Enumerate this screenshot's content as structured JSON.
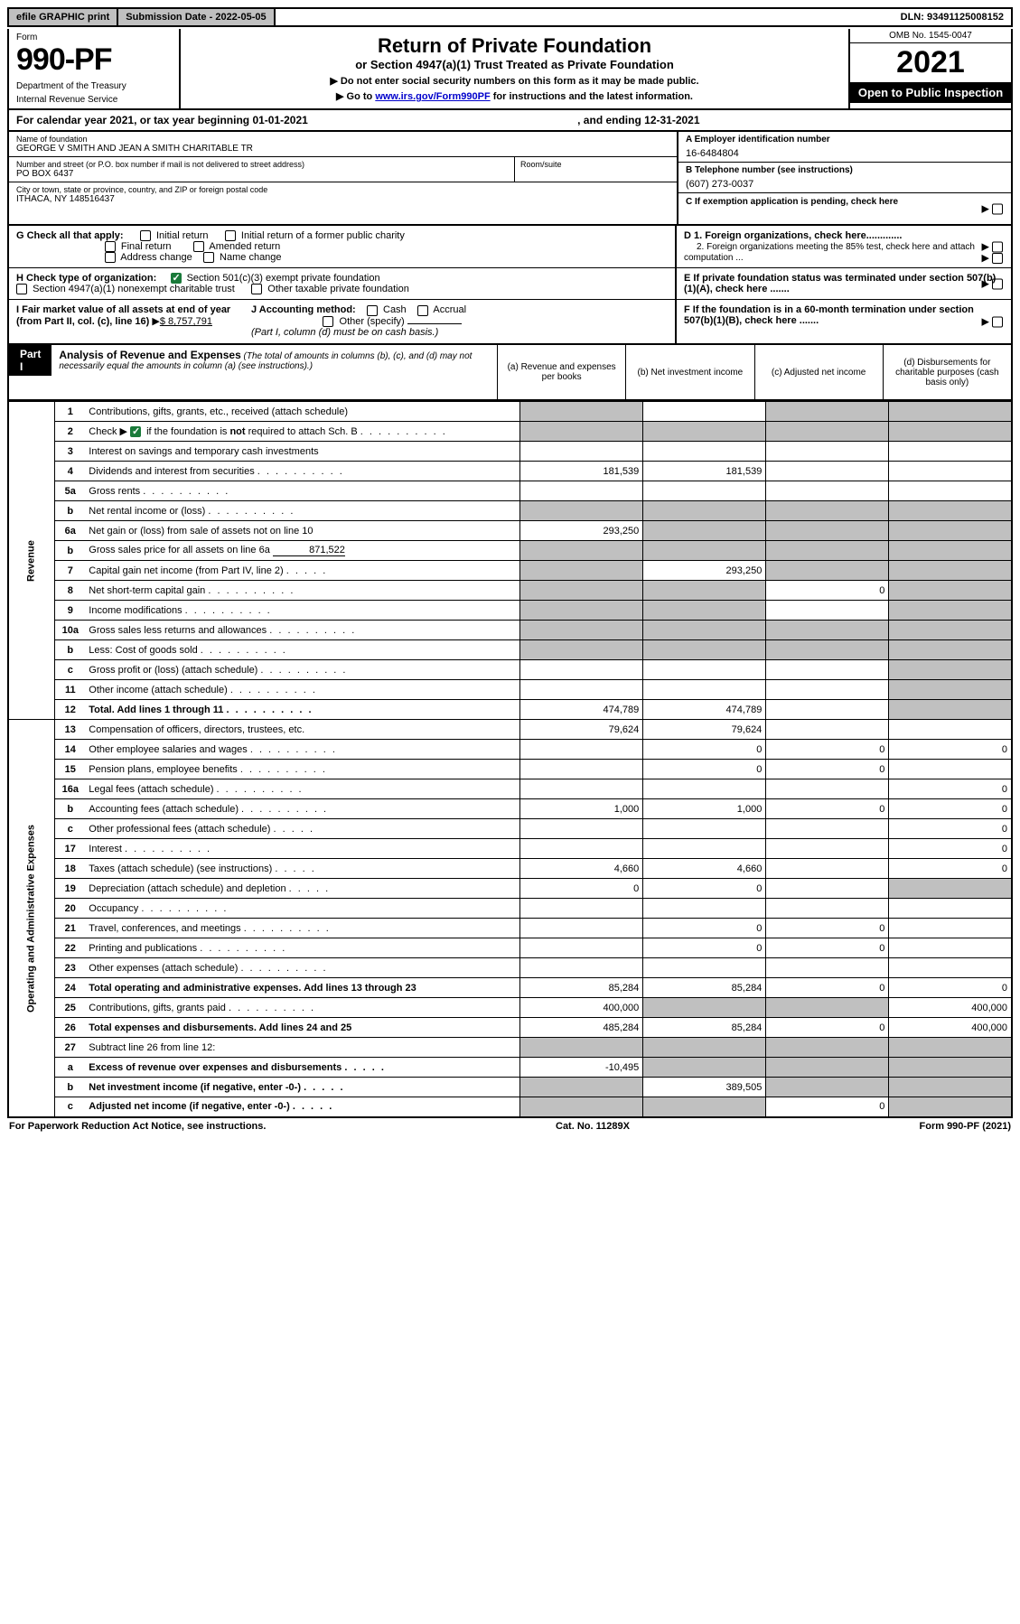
{
  "topbar": {
    "efile": "efile GRAPHIC print",
    "subdate_label": "Submission Date - ",
    "subdate_val": "2022-05-05",
    "dln_label": "DLN: ",
    "dln_val": "93491125008152"
  },
  "header": {
    "form_label": "Form",
    "form_no": "990-PF",
    "dept": "Department of the Treasury",
    "irs": "Internal Revenue Service",
    "title": "Return of Private Foundation",
    "subtitle": "or Section 4947(a)(1) Trust Treated as Private Foundation",
    "note1": "▶ Do not enter social security numbers on this form as it may be made public.",
    "note2a": "▶ Go to ",
    "note2link": "www.irs.gov/Form990PF",
    "note2b": " for instructions and the latest information.",
    "omb": "OMB No. 1545-0047",
    "year": "2021",
    "open": "Open to Public Inspection"
  },
  "cal": {
    "line": "For calendar year 2021, or tax year beginning 01-01-2021",
    "ending": ", and ending 12-31-2021"
  },
  "id": {
    "name_lbl": "Name of foundation",
    "name": "GEORGE V SMITH AND JEAN A SMITH CHARITABLE TR",
    "addr_lbl": "Number and street (or P.O. box number if mail is not delivered to street address)",
    "addr": "PO BOX 6437",
    "room_lbl": "Room/suite",
    "city_lbl": "City or town, state or province, country, and ZIP or foreign postal code",
    "city": "ITHACA, NY  148516437",
    "ein_lbl": "A Employer identification number",
    "ein": "16-6484804",
    "tel_lbl": "B Telephone number (see instructions)",
    "tel": "(607) 273-0037",
    "c_lbl": "C If exemption application is pending, check here"
  },
  "checks": {
    "g": "G Check all that apply:",
    "g1": "Initial return",
    "g2": "Initial return of a former public charity",
    "g3": "Final return",
    "g4": "Amended return",
    "g5": "Address change",
    "g6": "Name change",
    "h": "H Check type of organization:",
    "h1": "Section 501(c)(3) exempt private foundation",
    "h2": "Section 4947(a)(1) nonexempt charitable trust",
    "h3": "Other taxable private foundation",
    "i": "I Fair market value of all assets at end of year (from Part II, col. (c), line 16)",
    "i_val": "$  8,757,791",
    "j": "J Accounting method:",
    "j1": "Cash",
    "j2": "Accrual",
    "j3": "Other (specify)",
    "j_note": "(Part I, column (d) must be on cash basis.)",
    "d1": "D 1. Foreign organizations, check here.............",
    "d2": "2. Foreign organizations meeting the 85% test, check here and attach computation ...",
    "e": "E  If private foundation status was terminated under section 507(b)(1)(A), check here .......",
    "f": "F  If the foundation is in a 60-month termination under section 507(b)(1)(B), check here ......."
  },
  "part1": {
    "label": "Part I",
    "title": "Analysis of Revenue and Expenses",
    "subtitle": "(The total of amounts in columns (b), (c), and (d) may not necessarily equal the amounts in column (a) (see instructions).)",
    "col_a": "(a)     Revenue and expenses per books",
    "col_b": "(b)     Net investment income",
    "col_c": "(c)    Adjusted net income",
    "col_d": "(d)   Disbursements for charitable purposes (cash basis only)"
  },
  "sidelabels": {
    "revenue": "Revenue",
    "expenses": "Operating and Administrative Expenses"
  },
  "rows": [
    {
      "n": "1",
      "d": "Contributions, gifts, grants, etc., received (attach schedule)",
      "a": "",
      "b": "",
      "c": "",
      "e": "",
      "ga": true,
      "gb": false,
      "gc": true,
      "ge": true
    },
    {
      "n": "2",
      "d": "Check ▶ ☑ if the foundation is not required to attach Sch. B",
      "checked": true,
      "a": "",
      "b": "",
      "c": "",
      "e": "",
      "ga": true,
      "gb": true,
      "gc": true,
      "ge": true
    },
    {
      "n": "3",
      "d": "Interest on savings and temporary cash investments",
      "a": "",
      "b": "",
      "c": "",
      "e": ""
    },
    {
      "n": "4",
      "d": "Dividends and interest from securities",
      "a": "181,539",
      "b": "181,539",
      "c": "",
      "e": ""
    },
    {
      "n": "5a",
      "d": "Gross rents",
      "a": "",
      "b": "",
      "c": "",
      "e": ""
    },
    {
      "n": "b",
      "d": "Net rental income or (loss)",
      "sub": true,
      "a": "",
      "b": "",
      "c": "",
      "e": "",
      "ga": true,
      "gb": true,
      "gc": true,
      "ge": true
    },
    {
      "n": "6a",
      "d": "Net gain or (loss) from sale of assets not on line 10",
      "a": "293,250",
      "b": "",
      "c": "",
      "e": "",
      "gb": true,
      "gc": true,
      "ge": true
    },
    {
      "n": "b",
      "d": "Gross sales price for all assets on line 6a",
      "sub": true,
      "val": "871,522",
      "a": "",
      "b": "",
      "c": "",
      "e": "",
      "ga": true,
      "gb": true,
      "gc": true,
      "ge": true
    },
    {
      "n": "7",
      "d": "Capital gain net income (from Part IV, line 2)",
      "a": "",
      "b": "293,250",
      "c": "",
      "e": "",
      "ga": true,
      "gc": true,
      "ge": true
    },
    {
      "n": "8",
      "d": "Net short-term capital gain",
      "a": "",
      "b": "",
      "c": "0",
      "e": "",
      "ga": true,
      "gb": true,
      "ge": true
    },
    {
      "n": "9",
      "d": "Income modifications",
      "a": "",
      "b": "",
      "c": "",
      "e": "",
      "ga": true,
      "gb": true,
      "ge": true
    },
    {
      "n": "10a",
      "d": "Gross sales less returns and allowances",
      "sub": true,
      "a": "",
      "b": "",
      "c": "",
      "e": "",
      "ga": true,
      "gb": true,
      "gc": true,
      "ge": true
    },
    {
      "n": "b",
      "d": "Less: Cost of goods sold",
      "sub": true,
      "a": "",
      "b": "",
      "c": "",
      "e": "",
      "ga": true,
      "gb": true,
      "gc": true,
      "ge": true
    },
    {
      "n": "c",
      "d": "Gross profit or (loss) (attach schedule)",
      "sub": true,
      "a": "",
      "b": "",
      "c": "",
      "e": "",
      "ge": true
    },
    {
      "n": "11",
      "d": "Other income (attach schedule)",
      "a": "",
      "b": "",
      "c": "",
      "e": "",
      "ge": true
    },
    {
      "n": "12",
      "d": "Total. Add lines 1 through 11",
      "bold": true,
      "a": "474,789",
      "b": "474,789",
      "c": "",
      "e": "",
      "ge": true
    },
    {
      "n": "13",
      "d": "Compensation of officers, directors, trustees, etc.",
      "a": "79,624",
      "b": "79,624",
      "c": "",
      "e": ""
    },
    {
      "n": "14",
      "d": "Other employee salaries and wages",
      "a": "",
      "b": "0",
      "c": "0",
      "e": "0"
    },
    {
      "n": "15",
      "d": "Pension plans, employee benefits",
      "a": "",
      "b": "0",
      "c": "0",
      "e": ""
    },
    {
      "n": "16a",
      "d": "Legal fees (attach schedule)",
      "a": "",
      "b": "",
      "c": "",
      "e": "0"
    },
    {
      "n": "b",
      "d": "Accounting fees (attach schedule)",
      "sub": true,
      "a": "1,000",
      "b": "1,000",
      "c": "0",
      "e": "0"
    },
    {
      "n": "c",
      "d": "Other professional fees (attach schedule)",
      "sub": true,
      "a": "",
      "b": "",
      "c": "",
      "e": "0"
    },
    {
      "n": "17",
      "d": "Interest",
      "a": "",
      "b": "",
      "c": "",
      "e": "0"
    },
    {
      "n": "18",
      "d": "Taxes (attach schedule) (see instructions)",
      "a": "4,660",
      "b": "4,660",
      "c": "",
      "e": "0"
    },
    {
      "n": "19",
      "d": "Depreciation (attach schedule) and depletion",
      "a": "0",
      "b": "0",
      "c": "",
      "e": "",
      "ge": true
    },
    {
      "n": "20",
      "d": "Occupancy",
      "a": "",
      "b": "",
      "c": "",
      "e": ""
    },
    {
      "n": "21",
      "d": "Travel, conferences, and meetings",
      "a": "",
      "b": "0",
      "c": "0",
      "e": ""
    },
    {
      "n": "22",
      "d": "Printing and publications",
      "a": "",
      "b": "0",
      "c": "0",
      "e": ""
    },
    {
      "n": "23",
      "d": "Other expenses (attach schedule)",
      "a": "",
      "b": "",
      "c": "",
      "e": ""
    },
    {
      "n": "24",
      "d": "Total operating and administrative expenses. Add lines 13 through 23",
      "bold": true,
      "a": "85,284",
      "b": "85,284",
      "c": "0",
      "e": "0"
    },
    {
      "n": "25",
      "d": "Contributions, gifts, grants paid",
      "a": "400,000",
      "b": "",
      "c": "",
      "e": "400,000",
      "gb": true,
      "gc": true
    },
    {
      "n": "26",
      "d": "Total expenses and disbursements. Add lines 24 and 25",
      "bold": true,
      "a": "485,284",
      "b": "85,284",
      "c": "0",
      "e": "400,000"
    },
    {
      "n": "27",
      "d": "Subtract line 26 from line 12:",
      "a": "",
      "b": "",
      "c": "",
      "e": "",
      "ga": true,
      "gb": true,
      "gc": true,
      "ge": true
    },
    {
      "n": "a",
      "d": "Excess of revenue over expenses and disbursements",
      "sub": true,
      "bold": true,
      "a": "-10,495",
      "b": "",
      "c": "",
      "e": "",
      "gb": true,
      "gc": true,
      "ge": true
    },
    {
      "n": "b",
      "d": "Net investment income (if negative, enter -0-)",
      "sub": true,
      "bold": true,
      "a": "",
      "b": "389,505",
      "c": "",
      "e": "",
      "ga": true,
      "gc": true,
      "ge": true
    },
    {
      "n": "c",
      "d": "Adjusted net income (if negative, enter -0-)",
      "sub": true,
      "bold": true,
      "a": "",
      "b": "",
      "c": "0",
      "e": "",
      "ga": true,
      "gb": true,
      "ge": true
    }
  ],
  "footer": {
    "left": "For Paperwork Reduction Act Notice, see instructions.",
    "mid": "Cat. No. 11289X",
    "right": "Form 990-PF (2021)"
  },
  "colors": {
    "grey": "#c0c0c0",
    "green": "#1a7a3a",
    "link": "#0000cc"
  }
}
